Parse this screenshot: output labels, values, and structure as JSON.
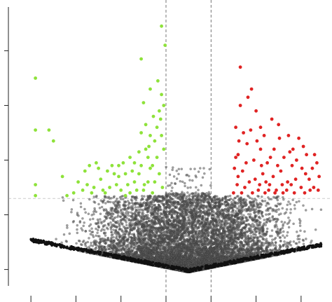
{
  "chart_data": {
    "type": "scatter",
    "title": "",
    "xlabel": "",
    "ylabel": "",
    "xlim": [
      -4.5,
      2.5
    ],
    "ylim": [
      -0.3,
      4.8
    ],
    "xticks": [
      -4,
      -3,
      -2,
      -1,
      0,
      1,
      2
    ],
    "yticks": [
      0,
      1,
      2,
      3,
      4,
      5
    ],
    "thresholds": {
      "fc_low": -1,
      "fc_high": 0,
      "pvalue_line": 1.3
    },
    "grid": false,
    "legend": "none",
    "series": [
      {
        "category": "not-significant",
        "color": "#555555",
        "points_generated": true,
        "count": 9000
      },
      {
        "category": "down-regulated",
        "color": "#8ee23a",
        "points": [
          [
            -3.9,
            3.5
          ],
          [
            -3.9,
            2.55
          ],
          [
            -3.9,
            1.55
          ],
          [
            -3.9,
            1.35
          ],
          [
            -3.6,
            2.55
          ],
          [
            -3.5,
            2.35
          ],
          [
            -3.3,
            1.7
          ],
          [
            -3.2,
            1.35
          ],
          [
            -2.95,
            1.6
          ],
          [
            -2.8,
            1.8
          ],
          [
            -2.7,
            1.9
          ],
          [
            -2.6,
            1.5
          ],
          [
            -2.5,
            1.85
          ],
          [
            -2.35,
            1.4
          ],
          [
            -2.2,
            1.9
          ],
          [
            -2.1,
            1.55
          ],
          [
            -2.05,
            1.7
          ],
          [
            -1.9,
            1.35
          ],
          [
            -1.8,
            2.05
          ],
          [
            -1.7,
            1.6
          ],
          [
            -1.6,
            1.75
          ],
          [
            -1.5,
            1.45
          ],
          [
            -1.45,
            2.2
          ],
          [
            -1.35,
            1.85
          ],
          [
            -1.3,
            1.4
          ],
          [
            -1.2,
            2.6
          ],
          [
            -1.15,
            2.9
          ],
          [
            -1.1,
            3.2
          ],
          [
            -1.05,
            3.0
          ],
          [
            -1.02,
            4.1
          ],
          [
            -1.4,
            2.05
          ],
          [
            -1.55,
            1.9
          ],
          [
            -1.65,
            1.45
          ],
          [
            -1.75,
            1.8
          ],
          [
            -1.85,
            1.55
          ],
          [
            -1.95,
            1.95
          ],
          [
            -2.0,
            1.45
          ],
          [
            -2.15,
            1.75
          ],
          [
            -2.25,
            1.5
          ],
          [
            -2.45,
            1.65
          ],
          [
            -2.55,
            1.95
          ],
          [
            -2.65,
            1.4
          ],
          [
            -2.75,
            1.55
          ],
          [
            -2.85,
            1.45
          ],
          [
            -3.05,
            1.4
          ],
          [
            -1.25,
            2.35
          ],
          [
            -1.35,
            2.45
          ],
          [
            -1.45,
            2.65
          ],
          [
            -1.5,
            3.05
          ],
          [
            -1.55,
            2.5
          ],
          [
            -1.25,
            1.6
          ],
          [
            -1.3,
            1.9
          ],
          [
            -1.4,
            1.6
          ],
          [
            -1.6,
            2.15
          ],
          [
            -1.7,
            1.95
          ],
          [
            -1.8,
            1.4
          ],
          [
            -1.9,
            1.75
          ],
          [
            -2.05,
            1.9
          ],
          [
            -2.3,
            1.8
          ],
          [
            -2.4,
            1.45
          ],
          [
            -1.1,
            2.45
          ],
          [
            -1.15,
            1.75
          ],
          [
            -1.2,
            2.05
          ],
          [
            -1.05,
            2.2
          ],
          [
            -1.08,
            1.5
          ],
          [
            -1.12,
            2.75
          ],
          [
            -1.18,
            3.45
          ],
          [
            -1.28,
            2.8
          ],
          [
            -1.38,
            2.25
          ],
          [
            -1.48,
            1.55
          ],
          [
            -1.1,
            4.45
          ],
          [
            -1.55,
            3.85
          ],
          [
            -1.35,
            3.3
          ]
        ]
      },
      {
        "category": "up-regulated",
        "color": "#e02323",
        "points": [
          [
            0.65,
            3.7
          ],
          [
            0.9,
            3.3
          ],
          [
            1.0,
            2.9
          ],
          [
            1.35,
            2.75
          ],
          [
            1.5,
            2.65
          ],
          [
            1.75,
            2.15
          ],
          [
            2.05,
            2.25
          ],
          [
            2.3,
            2.1
          ],
          [
            2.35,
            1.95
          ],
          [
            2.4,
            1.7
          ],
          [
            0.55,
            2.6
          ],
          [
            0.6,
            2.1
          ],
          [
            0.7,
            1.8
          ],
          [
            0.75,
            1.5
          ],
          [
            0.8,
            2.3
          ],
          [
            0.85,
            1.6
          ],
          [
            0.95,
            2.0
          ],
          [
            1.05,
            1.45
          ],
          [
            1.1,
            2.2
          ],
          [
            1.15,
            1.75
          ],
          [
            1.2,
            1.4
          ],
          [
            1.25,
            1.95
          ],
          [
            1.3,
            1.55
          ],
          [
            1.4,
            2.2
          ],
          [
            1.45,
            1.45
          ],
          [
            1.55,
            1.8
          ],
          [
            1.6,
            1.4
          ],
          [
            1.7,
            1.6
          ],
          [
            1.8,
            1.9
          ],
          [
            1.85,
            1.4
          ],
          [
            1.9,
            2.0
          ],
          [
            2.0,
            1.5
          ],
          [
            2.1,
            1.75
          ],
          [
            2.2,
            1.45
          ],
          [
            2.25,
            1.85
          ],
          [
            0.5,
            1.4
          ],
          [
            0.52,
            1.85
          ],
          [
            0.58,
            1.55
          ],
          [
            0.62,
            2.35
          ],
          [
            0.68,
            1.4
          ],
          [
            0.72,
            2.5
          ],
          [
            0.78,
            1.95
          ],
          [
            0.88,
            2.55
          ],
          [
            0.92,
            1.4
          ],
          [
            0.98,
            1.65
          ],
          [
            1.02,
            2.35
          ],
          [
            1.08,
            1.55
          ],
          [
            1.12,
            1.9
          ],
          [
            1.18,
            2.45
          ],
          [
            1.22,
            1.6
          ],
          [
            1.28,
            1.45
          ],
          [
            1.32,
            2.05
          ],
          [
            1.38,
            1.7
          ],
          [
            1.42,
            1.4
          ],
          [
            1.48,
            1.9
          ],
          [
            1.52,
            2.4
          ],
          [
            1.58,
            1.55
          ],
          [
            1.62,
            2.05
          ],
          [
            1.68,
            1.45
          ],
          [
            1.72,
            2.45
          ],
          [
            1.78,
            1.55
          ],
          [
            1.82,
            2.2
          ],
          [
            1.88,
            1.65
          ],
          [
            1.95,
            2.4
          ],
          [
            2.02,
            1.85
          ],
          [
            2.08,
            1.4
          ],
          [
            2.12,
            2.1
          ],
          [
            2.18,
            1.65
          ],
          [
            2.28,
            1.5
          ],
          [
            0.65,
            3.0
          ],
          [
            0.82,
            3.15
          ],
          [
            1.1,
            2.6
          ],
          [
            0.55,
            2.05
          ],
          [
            0.6,
            1.7
          ],
          [
            2.38,
            1.45
          ]
        ]
      }
    ]
  }
}
